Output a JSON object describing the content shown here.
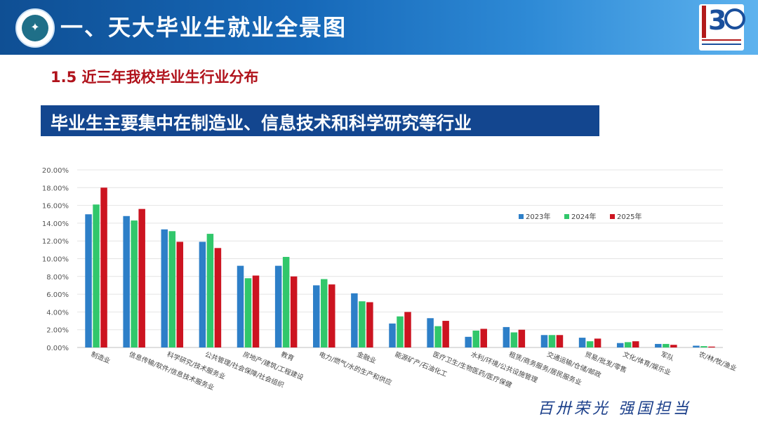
{
  "header": {
    "title": "一、天大毕业生就业全景图",
    "logo_icon": "university-seal-icon",
    "badge_icon": "130-anniversary-logo-icon"
  },
  "section_title": "1.5 近三年我校毕业生行业分布",
  "banner_text": "毕业生主要集中在制造业、信息技术和科学研究等行业",
  "slogan": "百卅荣光 强国担当",
  "chart_data": {
    "type": "bar",
    "categories": [
      "制造业",
      "信息传输/软件/信息技术服务业",
      "科学研究/技术服务业",
      "公共管理/社会保障/社会组织",
      "房地产/建筑/工程建设",
      "教育",
      "电力/燃气/水的生产和供应",
      "金融业",
      "能源矿产/石油化工",
      "医疗卫生/生物医药/医疗保健",
      "水利/环境/公共设施管理",
      "租赁/商务服务/居民服务业",
      "交通运输/仓储/邮政",
      "贸易/批发/零售",
      "文化/体育/娱乐业",
      "军队",
      "农/林/牧/渔业"
    ],
    "series": [
      {
        "name": "2023年",
        "color": "#2d7fc8",
        "values": [
          15.0,
          14.8,
          13.3,
          11.9,
          9.2,
          9.2,
          7.0,
          6.1,
          2.7,
          3.3,
          1.2,
          2.3,
          1.4,
          1.1,
          0.5,
          0.4,
          0.2
        ]
      },
      {
        "name": "2024年",
        "color": "#31c76b",
        "values": [
          16.1,
          14.3,
          13.1,
          12.8,
          7.8,
          10.2,
          7.7,
          5.2,
          3.5,
          2.4,
          1.9,
          1.7,
          1.4,
          0.7,
          0.6,
          0.4,
          0.15
        ]
      },
      {
        "name": "2025年",
        "color": "#cc1420",
        "values": [
          18.0,
          15.6,
          11.9,
          11.2,
          8.1,
          8.0,
          7.1,
          5.1,
          4.0,
          3.0,
          2.1,
          2.0,
          1.4,
          1.0,
          0.7,
          0.3,
          0.1
        ]
      }
    ],
    "y_ticks": [
      "0.00%",
      "2.00%",
      "4.00%",
      "6.00%",
      "8.00%",
      "10.00%",
      "12.00%",
      "14.00%",
      "16.00%",
      "18.00%",
      "20.00%"
    ],
    "ylim": [
      0,
      20
    ],
    "grid": true,
    "legend_position": "top-right"
  }
}
